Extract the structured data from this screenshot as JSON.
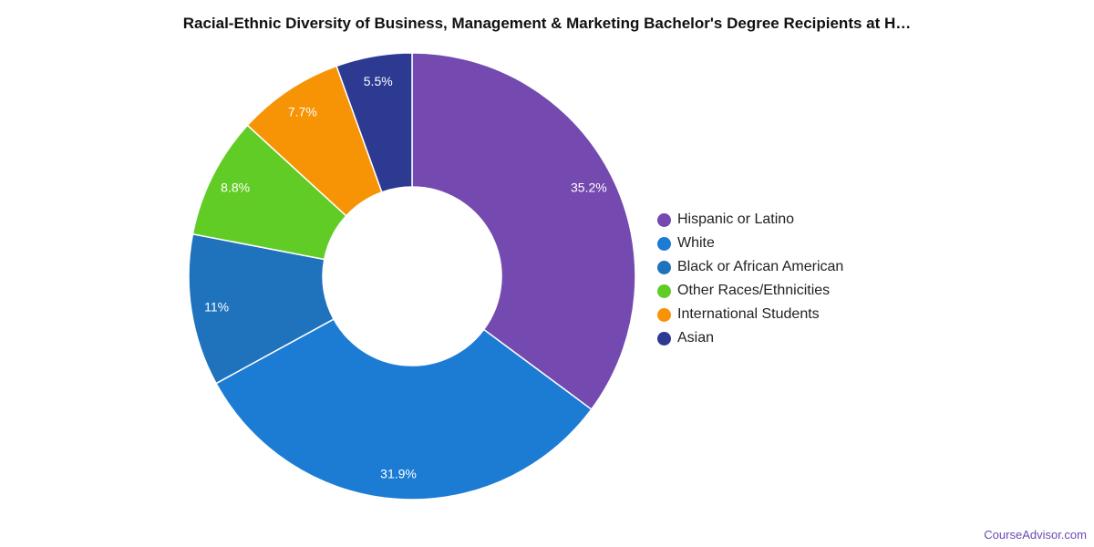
{
  "chart_data": {
    "type": "pie",
    "style": "donut",
    "title": "Racial-Ethnic Diversity of Business, Management & Marketing Bachelor's Degree Recipients at H…",
    "categories": [
      "Hispanic or Latino",
      "White",
      "Black or African American",
      "Other Races/Ethnicities",
      "International Students",
      "Asian"
    ],
    "values": [
      35.2,
      31.9,
      11,
      8.8,
      7.7,
      5.5
    ],
    "labels": [
      "35.2%",
      "31.9%",
      "11%",
      "8.8%",
      "7.7%",
      "5.5%"
    ],
    "colors": [
      "#7449b0",
      "#1c7cd4",
      "#1f72bc",
      "#62cc26",
      "#f79406",
      "#2c3a91"
    ],
    "legend_position": "right"
  },
  "brand": "CourseAdvisor.com"
}
